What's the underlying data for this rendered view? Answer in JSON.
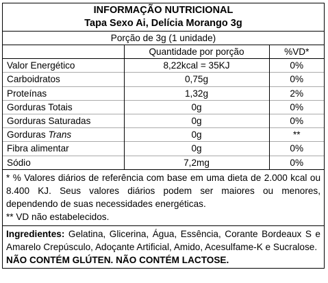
{
  "label": {
    "title": "INFORMAÇÃO NUTRICIONAL",
    "product": "Tapa Sexo Ai, Delícia Morango 3g",
    "portion": "Porção de 3g (1 unidade)",
    "columns": {
      "quantity": "Quantidade por porção",
      "vd": "%VD*"
    },
    "rows": [
      {
        "name": "Valor Energético",
        "qty": "8,22kcal = 35KJ",
        "vd": "0%"
      },
      {
        "name": "Carboidratos",
        "qty": "0,75g",
        "vd": "0%"
      },
      {
        "name": "Proteínas",
        "qty": "1,32g",
        "vd": "2%"
      },
      {
        "name": "Gorduras Totais",
        "qty": "0g",
        "vd": "0%"
      },
      {
        "name": "Gorduras Saturadas",
        "qty": "0g",
        "vd": "0%"
      },
      {
        "name_prefix": "Gorduras ",
        "name_italic": "Trans",
        "qty": "0g",
        "vd": "**"
      },
      {
        "name": "Fibra alimentar",
        "qty": "0g",
        "vd": "0%"
      },
      {
        "name": "Sódio",
        "qty": "7,2mg",
        "vd": "0%"
      }
    ],
    "footnote1": "* % Valores diários de referência com base em uma dieta de 2.000 kcal ou 8.400 KJ. Seus valores diários podem ser maiores ou menores, dependendo de suas necessidades energéticas.",
    "footnote2": "** VD não estabelecidos.",
    "ingredients_label": "Ingredientes:",
    "ingredients_text": " Gelatina, Glicerina, Água, Essência, Corante Bordeaux S e Amarelo Crepúsculo, Adoçante Artificial, Amido, Acesulfame-K e Sucralose.",
    "allergens": "NÃO CONTÉM GLÚTEN. NÃO CONTÉM LACTOSE."
  }
}
